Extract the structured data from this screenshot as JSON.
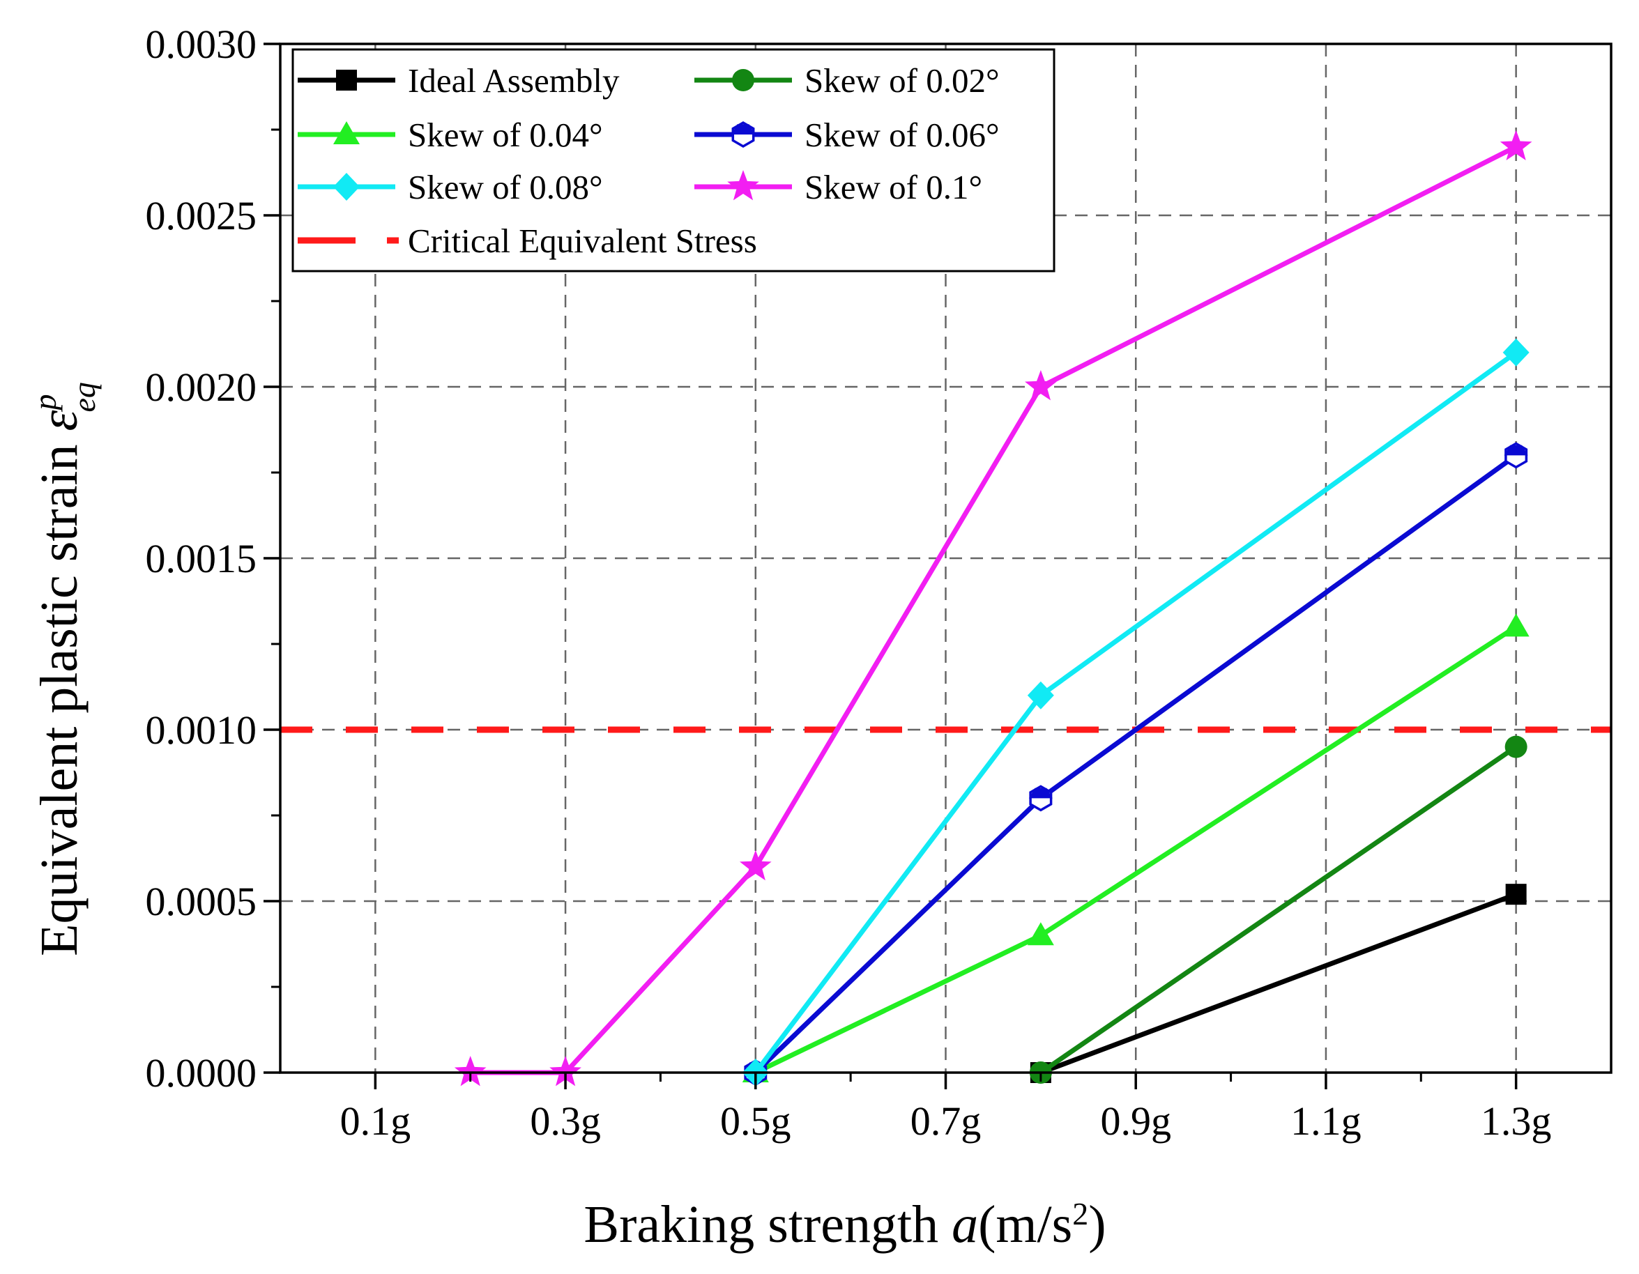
{
  "chart_data": {
    "type": "line",
    "title": "",
    "xlabel": {
      "prefix": "Braking strength ",
      "variable": "a",
      "unit_open": "(m/s",
      "unit_power": "2",
      "unit_close": ")"
    },
    "ylabel": {
      "prefix": "Equivalent plastic strain ",
      "symbol": "ε",
      "superscript": "p",
      "subscript": "eq"
    },
    "xlim": [
      0,
      1.4
    ],
    "ylim": [
      0,
      0.003
    ],
    "x_ticks": [
      {
        "value": 0.1,
        "label": "0.1g"
      },
      {
        "value": 0.3,
        "label": "0.3g"
      },
      {
        "value": 0.5,
        "label": "0.5g"
      },
      {
        "value": 0.7,
        "label": "0.7g"
      },
      {
        "value": 0.9,
        "label": "0.9g"
      },
      {
        "value": 1.1,
        "label": "1.1g"
      },
      {
        "value": 1.3,
        "label": "1.3g"
      }
    ],
    "x_minor_ticks": [
      0.2,
      0.4,
      0.6,
      0.8,
      1.0,
      1.2
    ],
    "y_ticks": [
      {
        "value": 0.0,
        "label": "0.0000"
      },
      {
        "value": 0.0005,
        "label": "0.0005"
      },
      {
        "value": 0.001,
        "label": "0.0010"
      },
      {
        "value": 0.0015,
        "label": "0.0015"
      },
      {
        "value": 0.002,
        "label": "0.0020"
      },
      {
        "value": 0.0025,
        "label": "0.0025"
      },
      {
        "value": 0.003,
        "label": "0.0030"
      }
    ],
    "y_minor_ticks": [
      0.00025,
      0.00075,
      0.00125,
      0.00175,
      0.00225,
      0.00275
    ],
    "grid": true,
    "legend_position": "top-left",
    "series": [
      {
        "name": "Ideal Assembly",
        "color": "#000000",
        "marker": "square",
        "x": [
          0.8,
          1.3
        ],
        "y": [
          0.0,
          0.00052
        ]
      },
      {
        "name": "Skew of 0.02°",
        "color": "#138613",
        "marker": "circle",
        "x": [
          0.8,
          1.3
        ],
        "y": [
          0.0,
          0.00095
        ]
      },
      {
        "name": "Skew of 0.04°",
        "color": "#22ee22",
        "marker": "triangle",
        "x": [
          0.5,
          0.8,
          1.3
        ],
        "y": [
          0.0,
          0.0004,
          0.0013
        ]
      },
      {
        "name": "Skew of 0.06°",
        "color": "#0a0ad2",
        "marker": "hexagon-half",
        "x": [
          0.5,
          0.8,
          1.3
        ],
        "y": [
          0.0,
          0.0008,
          0.0018
        ]
      },
      {
        "name": "Skew of 0.08°",
        "color": "#11eaf4",
        "marker": "diamond",
        "x": [
          0.5,
          0.8,
          1.3
        ],
        "y": [
          0.0,
          0.0011,
          0.0021
        ]
      },
      {
        "name": "Skew of 0.1°",
        "color": "#f21ef2",
        "marker": "star",
        "x": [
          0.2,
          0.3,
          0.5,
          0.8,
          1.3
        ],
        "y": [
          0.0,
          0.0,
          0.0006,
          0.002,
          0.0027
        ]
      }
    ],
    "reference_line": {
      "name": "Critical Equivalent Stress",
      "y": 0.001,
      "color": "#ff1a1a"
    }
  }
}
